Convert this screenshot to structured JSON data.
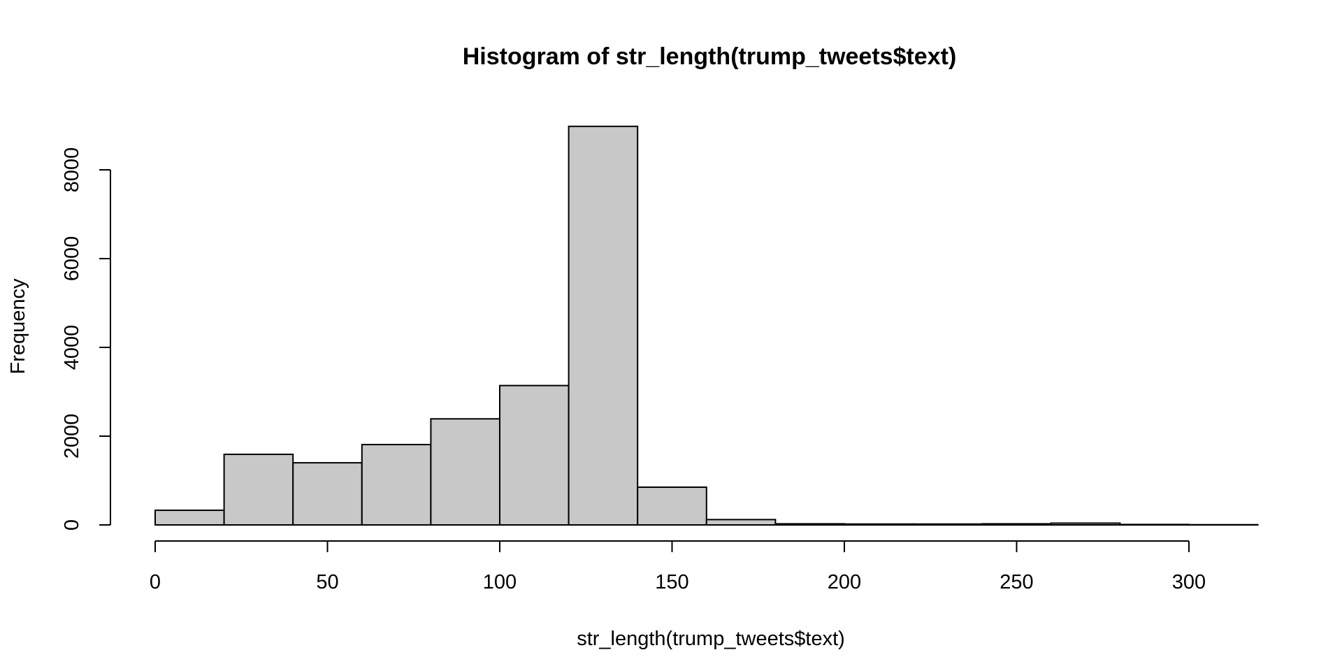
{
  "chart_data": {
    "type": "bar",
    "title": "Histogram of str_length(trump_tweets$text)",
    "xlabel": "str_length(trump_tweets$text)",
    "ylabel": "Frequency",
    "bin_edges": [
      0,
      20,
      40,
      60,
      80,
      100,
      120,
      140,
      160,
      180,
      200,
      220,
      240,
      260,
      280,
      300,
      320
    ],
    "values": [
      330,
      1590,
      1400,
      1810,
      2390,
      3140,
      8980,
      850,
      120,
      25,
      20,
      20,
      25,
      40,
      10,
      5
    ],
    "x_ticks": [
      "0",
      "50",
      "100",
      "150",
      "200",
      "250",
      "300"
    ],
    "y_ticks": [
      "0",
      "2000",
      "4000",
      "6000",
      "8000"
    ],
    "xlim": [
      0,
      300
    ],
    "ylim": [
      0,
      8000
    ],
    "bar_color": "#c8c8c8",
    "edge_color": "#000000",
    "grid": false
  }
}
